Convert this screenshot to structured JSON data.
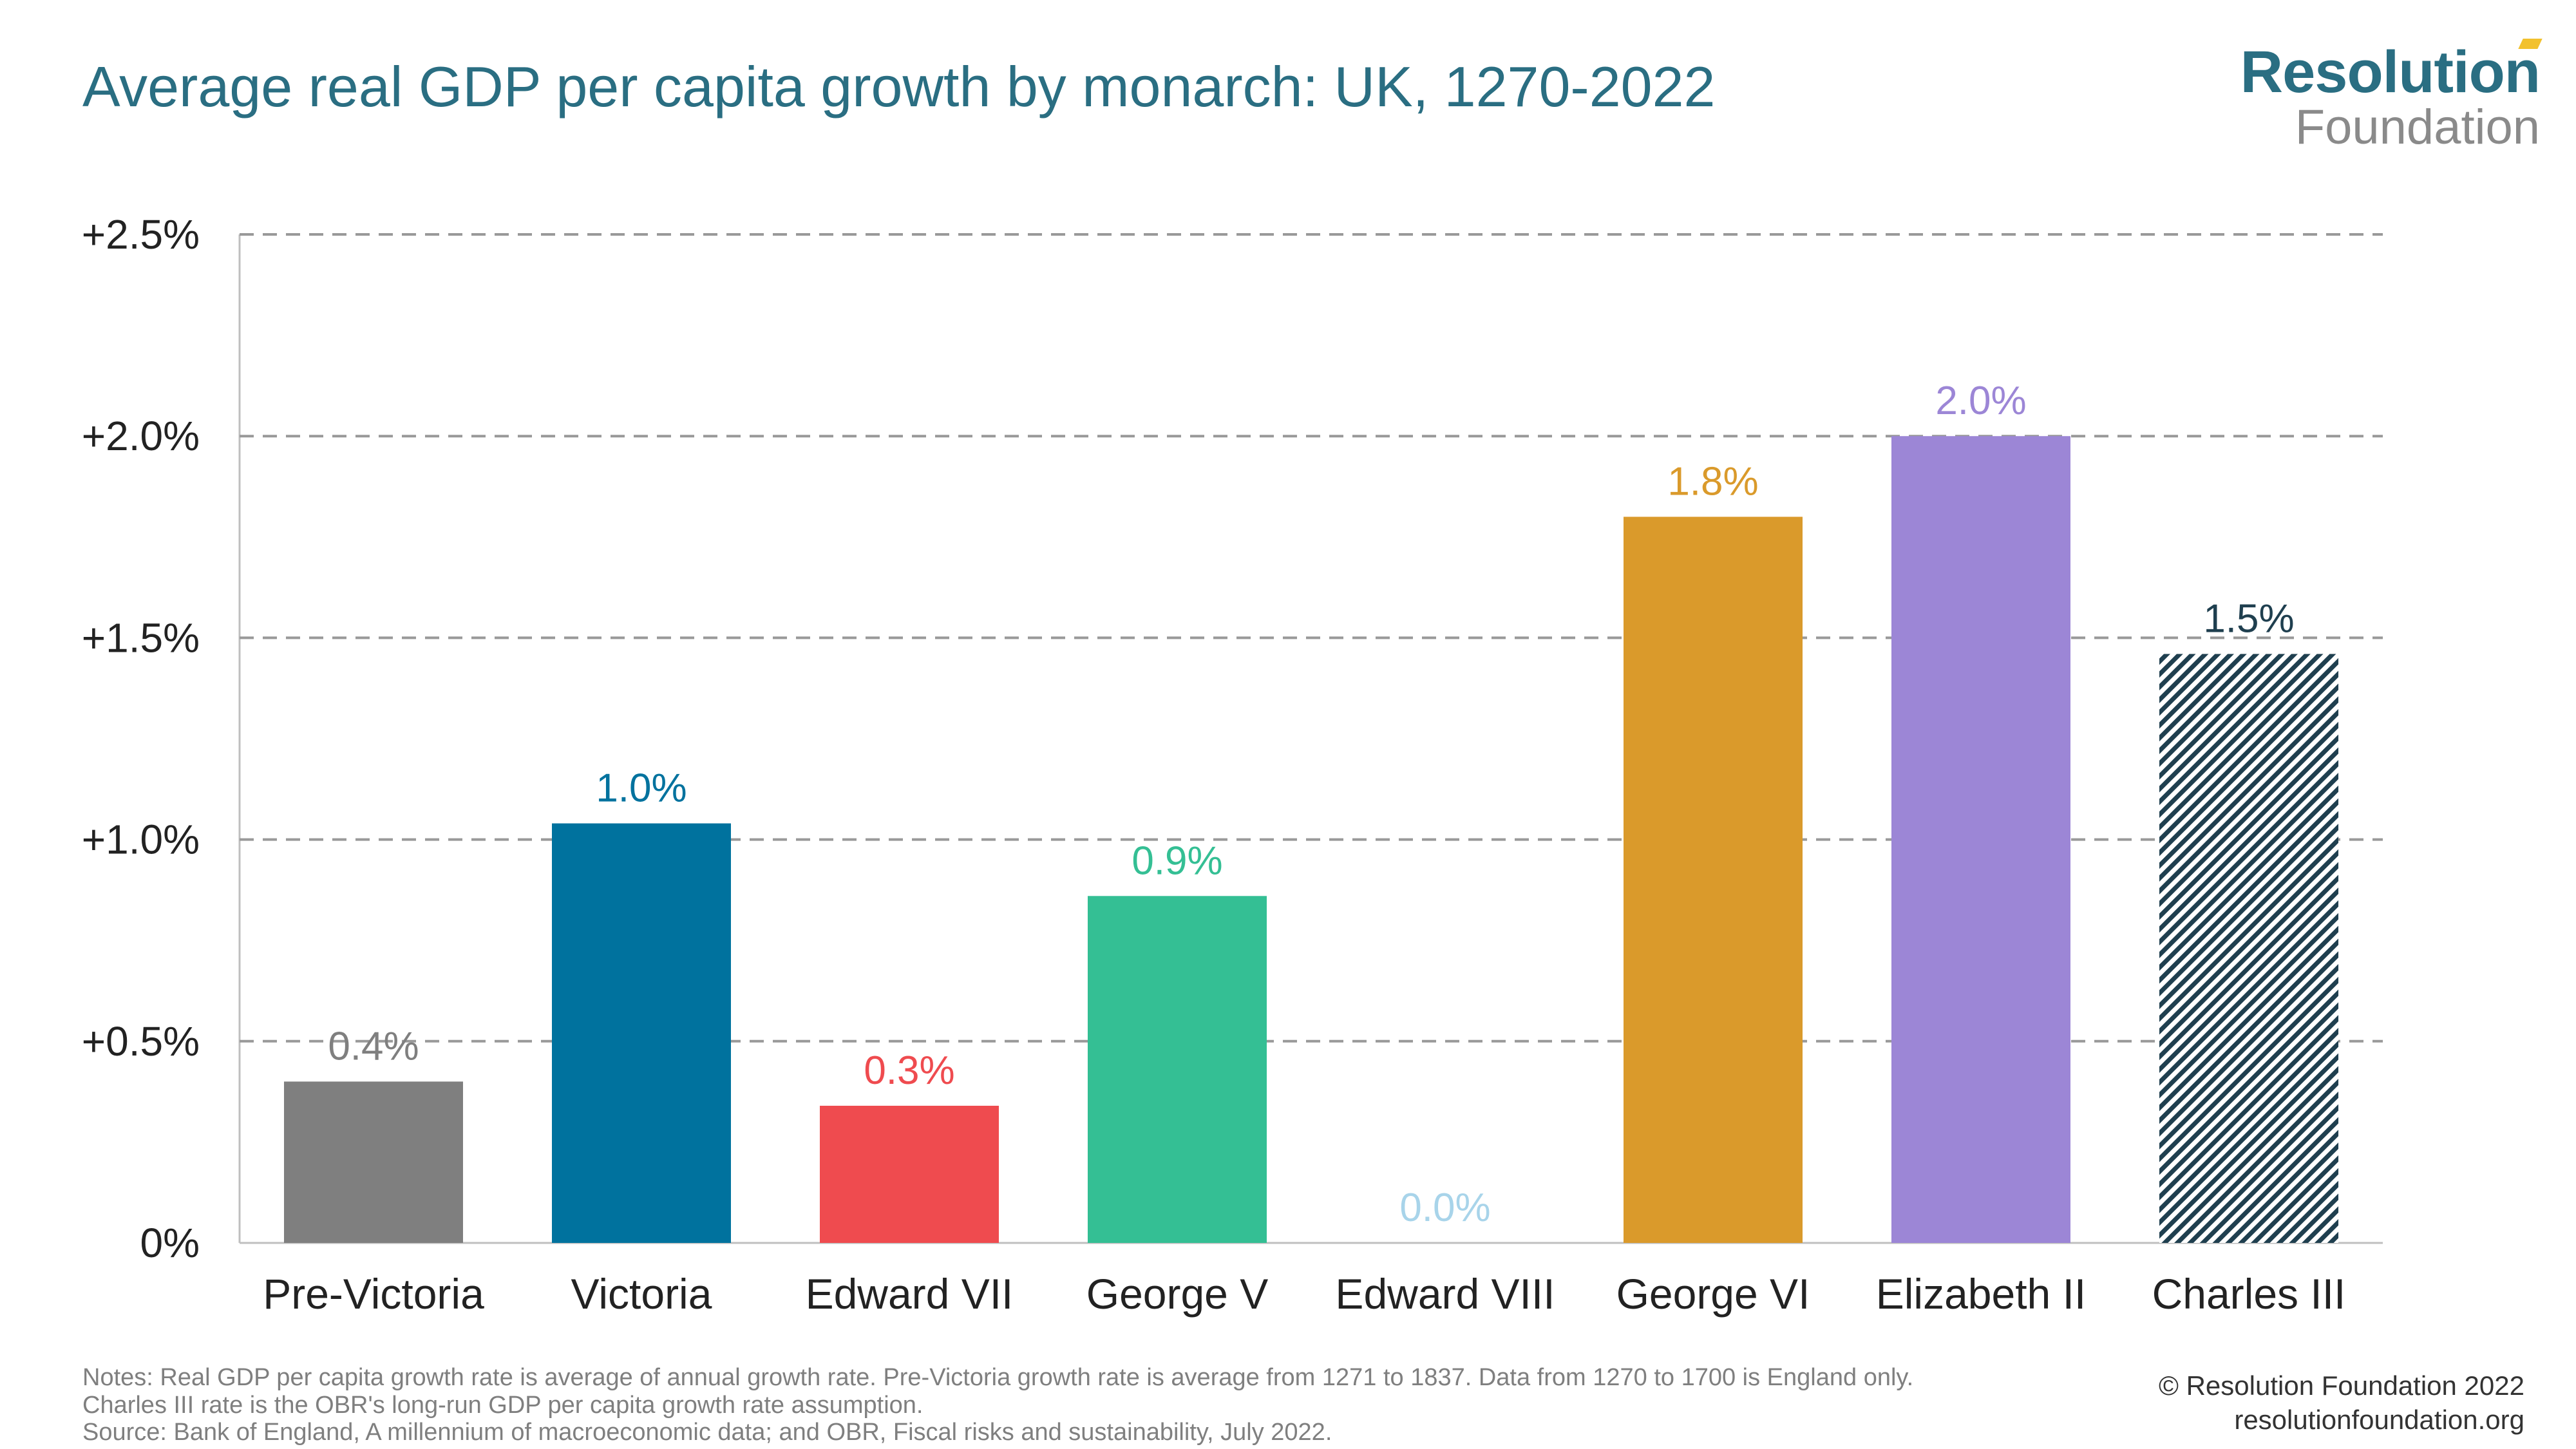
{
  "header": {
    "title": "Average real GDP per capita growth by monarch: UK, 1270-2022",
    "logo_main": "Resolution",
    "logo_sub": "Foundation"
  },
  "chart_data": {
    "type": "bar",
    "title": "Average real GDP per capita growth by monarch: UK, 1270-2022",
    "xlabel": "",
    "ylabel": "",
    "ylim": [
      0,
      2.5
    ],
    "yticks": [
      0,
      0.5,
      1.0,
      1.5,
      2.0,
      2.5
    ],
    "ytick_labels": [
      "0%",
      "+0.5%",
      "+1.0%",
      "+1.5%",
      "+2.0%",
      "+2.5%"
    ],
    "grid": true,
    "categories": [
      "Pre-Victoria",
      "Victoria",
      "Edward VII",
      "George V",
      "Edward VIII",
      "George VI",
      "Elizabeth II",
      "Charles III"
    ],
    "values": [
      0.4,
      1.04,
      0.34,
      0.86,
      0.0,
      1.8,
      2.0,
      1.46
    ],
    "data_labels": [
      "0.4%",
      "1.0%",
      "0.3%",
      "0.9%",
      "0.0%",
      "1.8%",
      "2.0%",
      "1.5%"
    ],
    "colors": [
      "#7f7f7f",
      "#00729e",
      "#ef4b4f",
      "#34bf94",
      "#a8d4ea",
      "#da9a2b",
      "#9c86d6",
      "#1f3f4f"
    ],
    "label_colors": [
      "#7f7f7f",
      "#00729e",
      "#ef4b4f",
      "#34bf94",
      "#a8d4ea",
      "#da9a2b",
      "#9c86d6",
      "#1f3f4f"
    ],
    "hatched": [
      false,
      false,
      false,
      false,
      false,
      false,
      false,
      true
    ]
  },
  "footer": {
    "notes": [
      "Notes: Real GDP per capita growth rate is average of annual growth rate. Pre-Victoria growth rate is average from 1271 to 1837. Data from 1270 to 1700 is England only.",
      "Charles III rate is the OBR's long-run GDP per capita growth rate assumption.",
      "Source: Bank of England, A millennium of macroeconomic data; and OBR, Fiscal risks and sustainability, July 2022."
    ],
    "copyright": "© Resolution Foundation 2022",
    "website": "resolutionfoundation.org"
  }
}
